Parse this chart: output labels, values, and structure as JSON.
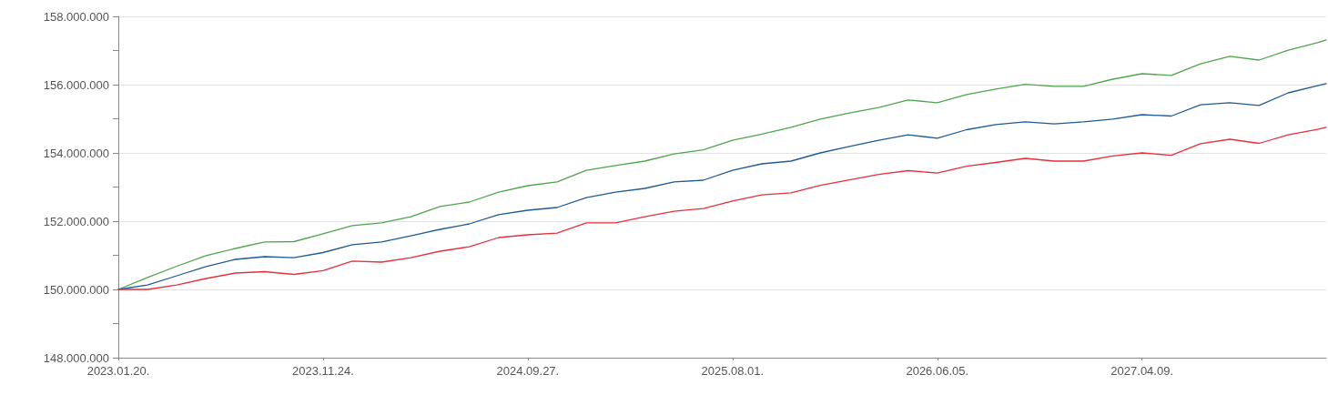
{
  "chart_data": {
    "type": "line",
    "x": [
      "2023-01-20",
      "2023-03-05",
      "2023-04-18",
      "2023-06-01",
      "2023-07-15",
      "2023-08-28",
      "2023-10-11",
      "2023-11-24",
      "2024-01-07",
      "2024-02-20",
      "2024-04-04",
      "2024-05-18",
      "2024-07-01",
      "2024-08-14",
      "2024-09-27",
      "2024-11-10",
      "2024-12-24",
      "2025-02-06",
      "2025-03-22",
      "2025-05-05",
      "2025-06-18",
      "2025-08-01",
      "2025-09-14",
      "2025-10-28",
      "2025-12-11",
      "2026-01-24",
      "2026-03-09",
      "2026-04-22",
      "2026-06-05",
      "2026-07-19",
      "2026-09-01",
      "2026-10-15",
      "2026-11-28",
      "2027-01-11",
      "2027-02-24",
      "2027-04-09",
      "2027-05-23",
      "2027-07-06",
      "2027-08-19",
      "2027-10-02",
      "2027-11-15",
      "2027-12-29",
      "2028-01-11"
    ],
    "series": [
      {
        "color": "#4ea64a",
        "values": [
          150000000,
          150350000,
          150680000,
          150990000,
          151200000,
          151390000,
          151400000,
          151630000,
          151870000,
          151950000,
          152130000,
          152430000,
          152560000,
          152850000,
          153040000,
          153150000,
          153490000,
          153630000,
          153760000,
          153970000,
          154090000,
          154370000,
          154550000,
          154750000,
          154990000,
          155170000,
          155330000,
          155550000,
          155470000,
          155710000,
          155870000,
          156010000,
          155950000,
          155950000,
          156160000,
          156320000,
          156270000,
          156610000,
          156830000,
          156720000,
          157010000,
          157230000,
          157310000
        ]
      },
      {
        "color": "#1f5b94",
        "values": [
          150000000,
          150130000,
          150400000,
          150670000,
          150880000,
          150960000,
          150930000,
          151080000,
          151310000,
          151390000,
          151570000,
          151760000,
          151920000,
          152190000,
          152320000,
          152400000,
          152690000,
          152850000,
          152960000,
          153150000,
          153200000,
          153490000,
          153680000,
          153760000,
          154000000,
          154190000,
          154370000,
          154530000,
          154430000,
          154680000,
          154830000,
          154910000,
          154850000,
          154910000,
          154990000,
          155120000,
          155080000,
          155410000,
          155470000,
          155390000,
          155760000,
          155970000,
          156030000
        ]
      },
      {
        "color": "#e8303a",
        "values": [
          150000000,
          150000000,
          150130000,
          150320000,
          150480000,
          150520000,
          150440000,
          150550000,
          150830000,
          150800000,
          150930000,
          151120000,
          151250000,
          151520000,
          151600000,
          151650000,
          151950000,
          151950000,
          152130000,
          152290000,
          152370000,
          152590000,
          152770000,
          152830000,
          153050000,
          153210000,
          153370000,
          153480000,
          153410000,
          153610000,
          153720000,
          153840000,
          153760000,
          153760000,
          153910000,
          154000000,
          153930000,
          154270000,
          154400000,
          154280000,
          154530000,
          154690000,
          154750000
        ]
      }
    ],
    "xlim": [
      "2023-01-20",
      "2028-01-11"
    ],
    "xticks": [
      {
        "value": "2023-01-20",
        "label": "2023.01.20."
      },
      {
        "value": "2023-11-24",
        "label": "2023.11.24."
      },
      {
        "value": "2024-09-27",
        "label": "2024.09.27."
      },
      {
        "value": "2025-08-01",
        "label": "2025.08.01."
      },
      {
        "value": "2026-06-05",
        "label": "2026.06.05."
      },
      {
        "value": "2027-04-09",
        "label": "2027.04.09."
      }
    ],
    "ylim": [
      148000000,
      158000000
    ],
    "yticks": [
      {
        "value": 148000000,
        "label": "148.000.000"
      },
      {
        "value": 149000000,
        "label": null
      },
      {
        "value": 150000000,
        "label": "150.000.000"
      },
      {
        "value": 151000000,
        "label": null
      },
      {
        "value": 152000000,
        "label": "152.000.000"
      },
      {
        "value": 153000000,
        "label": null
      },
      {
        "value": 154000000,
        "label": "154.000.000"
      },
      {
        "value": 155000000,
        "label": null
      },
      {
        "value": 156000000,
        "label": "156.000.000"
      },
      {
        "value": 157000000,
        "label": null
      },
      {
        "value": 158000000,
        "label": "158.000.000"
      }
    ],
    "grid": "y",
    "marker": "none",
    "line_style": "solid"
  }
}
